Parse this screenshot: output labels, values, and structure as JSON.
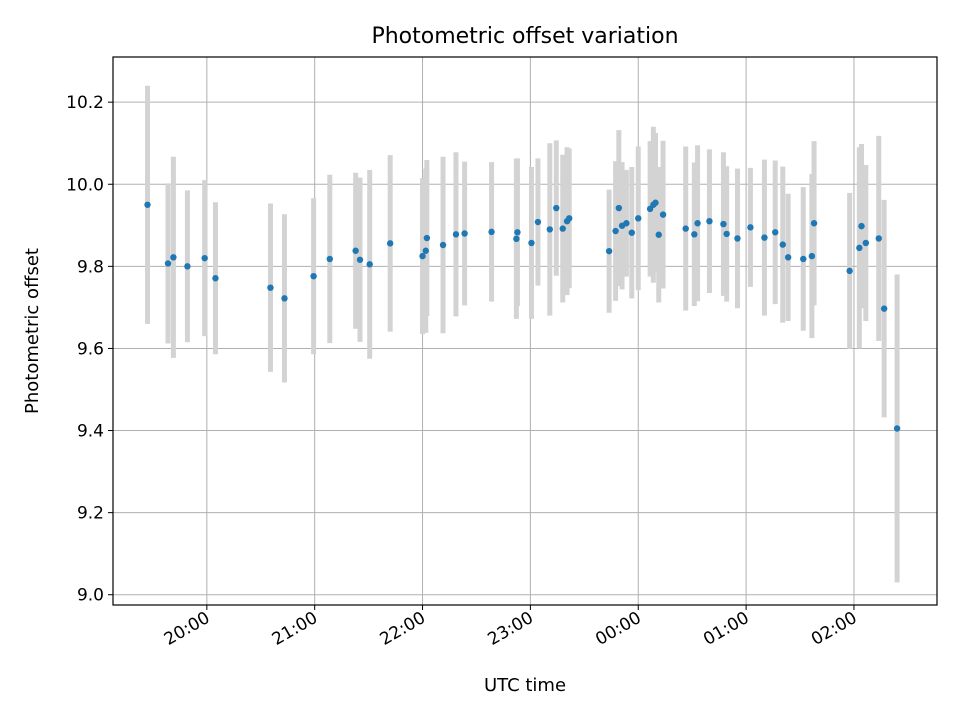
{
  "chart_data": {
    "type": "scatter",
    "title": "Photometric offset variation",
    "xlabel": "UTC time",
    "ylabel": "Photometric offset",
    "x_type": "time",
    "x_ticks": [
      "20:00",
      "21:00",
      "22:00",
      "23:00",
      "00:00",
      "01:00",
      "02:00"
    ],
    "x_tick_values_hours": [
      20,
      21,
      22,
      23,
      24,
      25,
      26
    ],
    "xlim_hours": [
      19.13,
      26.77
    ],
    "y_ticks": [
      "9.0",
      "9.2",
      "9.4",
      "9.6",
      "9.8",
      "10.0",
      "10.2"
    ],
    "y_tick_values": [
      9.0,
      9.2,
      9.4,
      9.6,
      9.8,
      10.0,
      10.2
    ],
    "ylim": [
      8.975,
      10.31
    ],
    "grid": true,
    "colors": {
      "points": "#1f77b4",
      "errorbars": "#d3d3d3",
      "grid": "#b0b0b0"
    },
    "series": [
      {
        "x_hours": [
          19.45,
          19.64,
          19.69,
          19.82,
          19.98,
          20.08,
          20.59,
          20.72,
          20.99,
          21.14,
          21.38,
          21.42,
          21.51,
          21.7,
          22.0,
          22.03,
          22.04,
          22.19,
          22.31,
          22.39,
          22.64,
          22.87,
          22.88,
          23.01,
          23.07,
          23.18,
          23.24,
          23.3,
          23.34,
          23.36,
          23.73,
          23.79,
          23.82,
          23.85,
          23.89,
          23.94,
          24.0,
          24.11,
          24.14,
          24.16,
          24.19,
          24.23,
          24.44,
          24.52,
          24.55,
          24.66,
          24.79,
          24.82,
          24.92,
          25.04,
          25.17,
          25.27,
          25.34,
          25.39,
          25.53,
          25.61,
          25.63,
          25.96,
          26.05,
          26.07,
          26.11,
          26.23,
          26.28,
          26.4
        ],
        "y": [
          9.95,
          9.807,
          9.822,
          9.8,
          9.82,
          9.771,
          9.748,
          9.722,
          9.776,
          9.818,
          9.838,
          9.816,
          9.805,
          9.856,
          9.825,
          9.838,
          9.869,
          9.852,
          9.878,
          9.88,
          9.884,
          9.867,
          9.883,
          9.857,
          9.908,
          9.89,
          9.942,
          9.892,
          9.91,
          9.917,
          9.837,
          9.886,
          9.942,
          9.899,
          9.905,
          9.882,
          9.917,
          9.94,
          9.95,
          9.955,
          9.877,
          9.926,
          9.892,
          9.878,
          9.905,
          9.91,
          9.903,
          9.879,
          9.868,
          9.895,
          9.87,
          9.883,
          9.853,
          9.822,
          9.818,
          9.825,
          9.905,
          9.789,
          9.845,
          9.898,
          9.857,
          9.868,
          9.697,
          9.405
        ],
        "yerr": [
          0.29,
          0.195,
          0.245,
          0.185,
          0.19,
          0.185,
          0.205,
          0.205,
          0.19,
          0.205,
          0.19,
          0.2,
          0.23,
          0.215,
          0.19,
          0.2,
          0.19,
          0.215,
          0.2,
          0.175,
          0.17,
          0.195,
          0.18,
          0.185,
          0.155,
          0.21,
          0.165,
          0.18,
          0.18,
          0.17,
          0.15,
          0.17,
          0.19,
          0.155,
          0.13,
          0.16,
          0.175,
          0.165,
          0.19,
          0.17,
          0.165,
          0.18,
          0.2,
          0.175,
          0.19,
          0.175,
          0.175,
          0.165,
          0.17,
          0.145,
          0.19,
          0.175,
          0.19,
          0.155,
          0.175,
          0.2,
          0.2,
          0.19,
          0.245,
          0.2,
          0.19,
          0.25,
          0.265,
          0.375
        ]
      }
    ]
  }
}
